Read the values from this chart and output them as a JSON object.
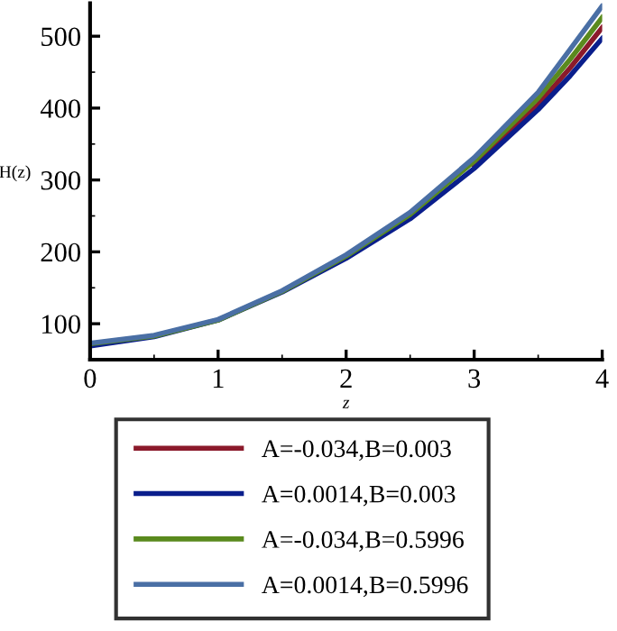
{
  "chart_data": {
    "type": "line",
    "xlabel": "z",
    "ylabel": "H(z)",
    "x": [
      0,
      0.5,
      1,
      1.5,
      2,
      2.5,
      3,
      3.5,
      3.75,
      4
    ],
    "series": [
      {
        "name": "A=-0.034,B=0.003",
        "color": "#8b1a2b",
        "values": [
          null,
          null,
          null,
          null,
          null,
          null,
          320,
          405,
          456,
          512
        ]
      },
      {
        "name": "A=0.0014,B=0.003",
        "color": "#0a1e8c",
        "values": [
          69,
          82,
          105,
          144,
          191,
          246,
          316,
          398,
          445,
          497
        ]
      },
      {
        "name": "A=-0.034,B=0.5996",
        "color": "#5a8a1e",
        "values": [
          72,
          83,
          105,
          145,
          194,
          252,
          326,
          414,
          468,
          526
        ]
      },
      {
        "name": "A=0.0014,B=0.5996",
        "color": "#4a6fa5",
        "values": [
          73,
          84,
          106,
          146,
          196,
          255,
          331,
          422,
          482,
          542
        ]
      }
    ],
    "xlim": [
      0,
      4
    ],
    "ylim": [
      50,
      546
    ],
    "xticks": [
      0,
      1,
      2,
      3,
      4
    ],
    "yticks": [
      100,
      200,
      300,
      400,
      500
    ],
    "grid": false,
    "legend": "bottom",
    "marker": "none",
    "line_style": "solid"
  }
}
